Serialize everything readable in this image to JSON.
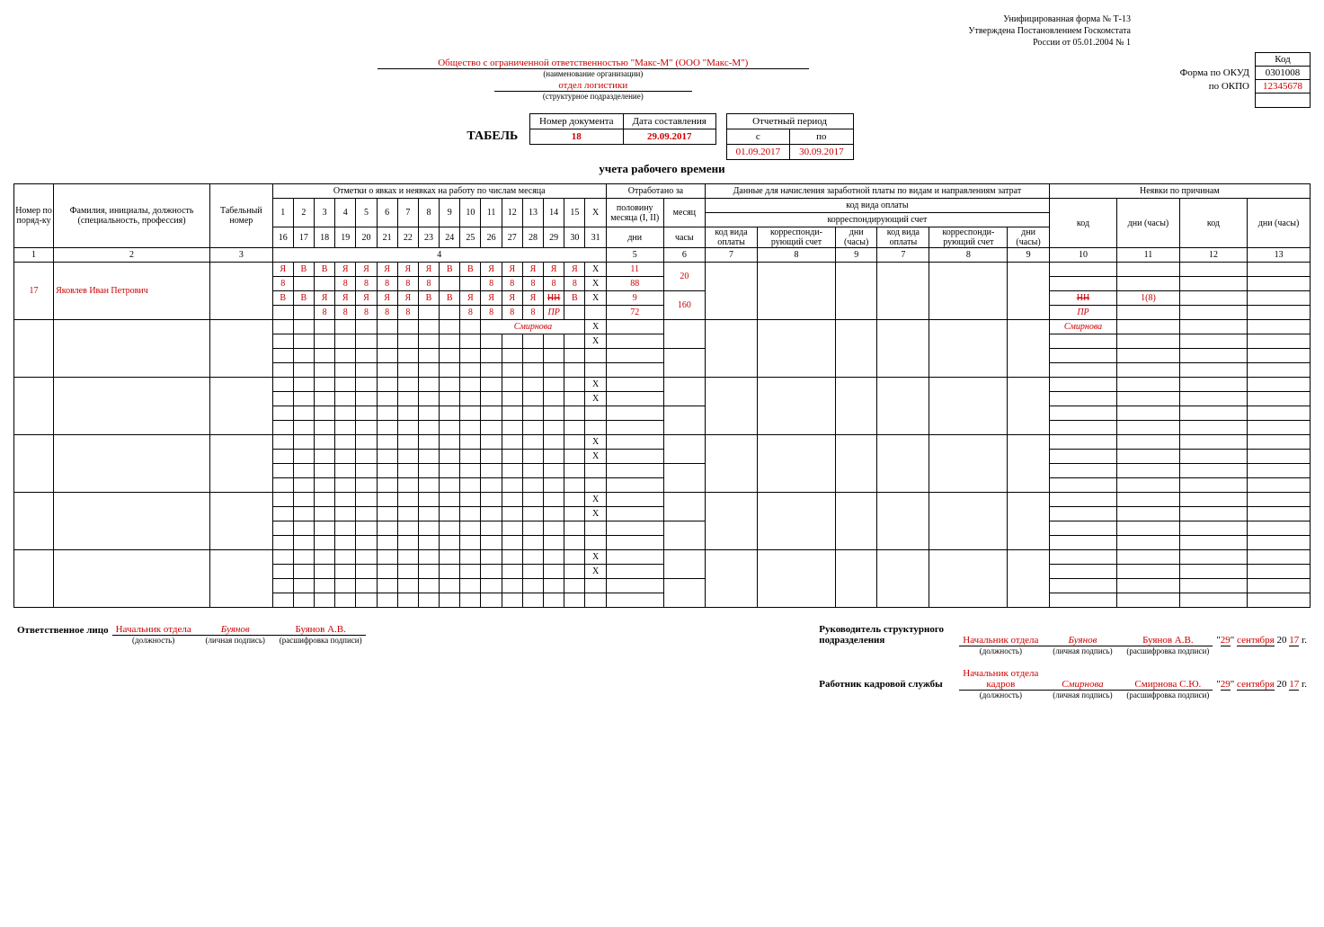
{
  "meta": {
    "line1": "Унифицированная форма № Т-13",
    "line2": "Утверждена Постановлением Госкомстата",
    "line3": "России от 05.01.2004 № 1"
  },
  "codebox": {
    "kod": "Код",
    "okud_lbl": "Форма по ОКУД",
    "okud": "0301008",
    "okpo_lbl": "по ОКПО",
    "okpo": "12345678"
  },
  "org": {
    "name": "Общество с ограниченной ответственностью  \"Макс-М\" (ООО \"Макс-М\")",
    "name_cap": "(наименование организации)",
    "dept": "отдел логистики",
    "dept_cap": "(структурное подразделение)"
  },
  "doc": {
    "tabel": "ТАБЕЛЬ",
    "num_h": "Номер документа",
    "date_h": "Дата составления",
    "num": "18",
    "date": "29.09.2017",
    "period_h": "Отчетный период",
    "from_h": "с",
    "to_h": "по",
    "from": "01.09.2017",
    "to": "30.09.2017",
    "subtitle": "учета   рабочего времени"
  },
  "head": {
    "c1": "Номер по поряд-ку",
    "c2": "Фамилия, инициалы, должность (специальность, профессия)",
    "c3": "Табельный номер",
    "c4": "Отметки о явках и неявках на работу по числам месяца",
    "c5": "Отработано за",
    "c6": "Данные для начисления заработной платы по видам и направлениям затрат",
    "c7": "Неявки по причинам",
    "half": "половину месяца (I, II)",
    "month": "месяц",
    "days": "дни",
    "hours": "часы",
    "pay_kind": "код вида оплаты",
    "corr": "корреспондирующий счет",
    "kv": "код вида оплаты",
    "ks": "корреспонди-рующий счет",
    "dch": "дни (часы)",
    "kod": "код",
    "dnich": "дни (часы)",
    "nums_top": [
      "1",
      "2",
      "3",
      "4",
      "5",
      "6",
      "7",
      "8",
      "9",
      "10",
      "11",
      "12",
      "13",
      "14",
      "15",
      "X"
    ],
    "nums_bot": [
      "16",
      "17",
      "18",
      "19",
      "20",
      "21",
      "22",
      "23",
      "24",
      "25",
      "26",
      "27",
      "28",
      "29",
      "30",
      "31"
    ],
    "colnums": [
      "1",
      "2",
      "3",
      "4",
      "5",
      "6",
      "7",
      "8",
      "9",
      "7",
      "8",
      "9",
      "10",
      "11",
      "12",
      "13"
    ]
  },
  "row1": {
    "num": "17",
    "name": "Яковлев Иван Петрович",
    "r1": [
      "Я",
      "В",
      "В",
      "Я",
      "Я",
      "Я",
      "Я",
      "Я",
      "В",
      "В",
      "Я",
      "Я",
      "Я",
      "Я",
      "Я",
      "X"
    ],
    "r2": [
      "8",
      "",
      "",
      "8",
      "8",
      "8",
      "8",
      "8",
      "",
      "",
      "8",
      "8",
      "8",
      "8",
      "8",
      "X"
    ],
    "r3": [
      "В",
      "В",
      "Я",
      "Я",
      "Я",
      "Я",
      "Я",
      "В",
      "В",
      "Я",
      "Я",
      "Я",
      "Я",
      "НН",
      "В",
      "X"
    ],
    "r4": [
      "",
      "",
      "8",
      "8",
      "8",
      "8",
      "8",
      "",
      "",
      "8",
      "8",
      "8",
      "8",
      "ПР",
      "",
      ""
    ],
    "w1": "11",
    "w1m": "20",
    "w2": "88",
    "w3": "9",
    "w3m": "160",
    "w4": "72",
    "abs_code1": "НН",
    "abs_days1": "1(8)",
    "abs_code2": "ПР",
    "sign1": "Смирнова",
    "sign2": "Смирнова"
  },
  "sig": {
    "resp": "Ответственное лицо",
    "pos1": "Начальник отдела",
    "sign1": "Буянов",
    "dec1": "Буянов А.В.",
    "pos_cap": "(должность)",
    "sign_cap": "(личная подпись)",
    "dec_cap": "(расшифровка подписи)",
    "ruk": "Руководитель структурного подразделения",
    "pos2": "Начальник отдела",
    "sign2": "Буянов",
    "dec2": "Буянов А.В.",
    "hr": "Работник кадровой службы",
    "pos3_a": "Начальник отдела",
    "pos3_b": "кадров",
    "sign3": "Смирнова",
    "dec3": "Смирнова С.Ю.",
    "d": "29",
    "m": "сентября",
    "y": "17",
    "q": "\"",
    "g": " г.",
    "y20": " 20 "
  }
}
